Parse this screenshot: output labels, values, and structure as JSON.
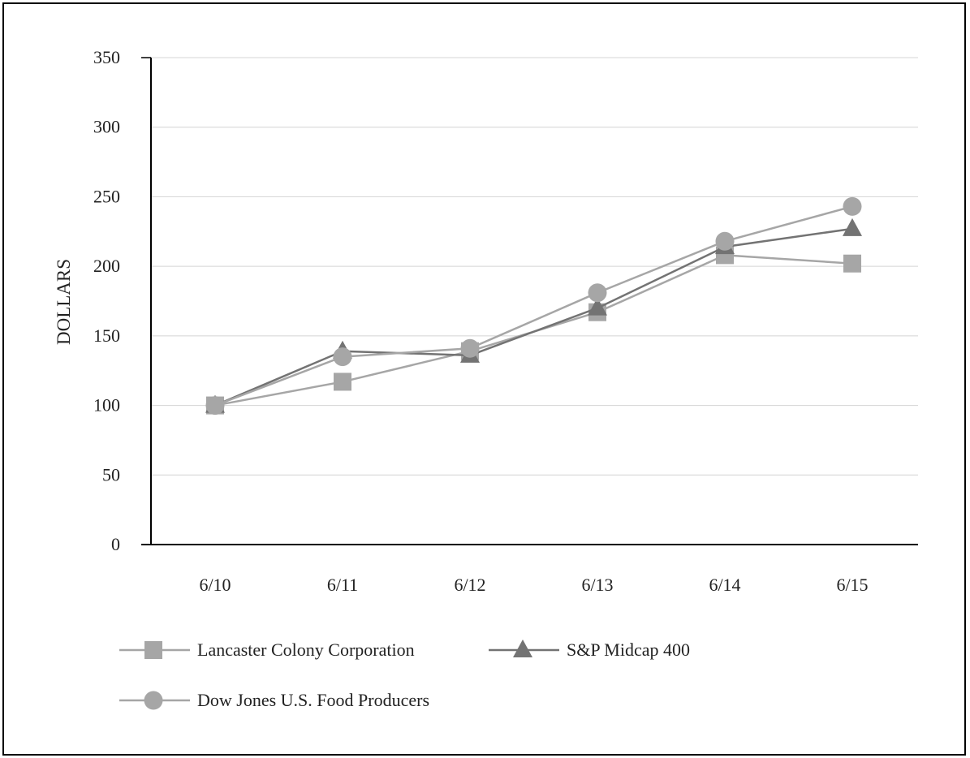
{
  "chart_data": {
    "type": "line",
    "title": "",
    "xlabel": "",
    "ylabel": "DOLLARS",
    "x": [
      "6/10",
      "6/11",
      "6/12",
      "6/13",
      "6/14",
      "6/15"
    ],
    "ylim": [
      0,
      350
    ],
    "yticks": [
      0,
      50,
      100,
      150,
      200,
      250,
      300,
      350
    ],
    "grid": true,
    "legend_position": "bottom",
    "series": [
      {
        "name": "Lancaster Colony Corporation",
        "marker": "square",
        "color": "#a6a6a6",
        "values": [
          100,
          117,
          139,
          167,
          208,
          202
        ]
      },
      {
        "name": "S&P Midcap 400",
        "marker": "triangle",
        "color": "#737373",
        "values": [
          100,
          139,
          136,
          170,
          214,
          227
        ]
      },
      {
        "name": "Dow Jones U.S. Food Producers",
        "marker": "circle",
        "color": "#a6a6a6",
        "values": [
          100,
          135,
          141,
          181,
          218,
          243
        ]
      }
    ]
  }
}
